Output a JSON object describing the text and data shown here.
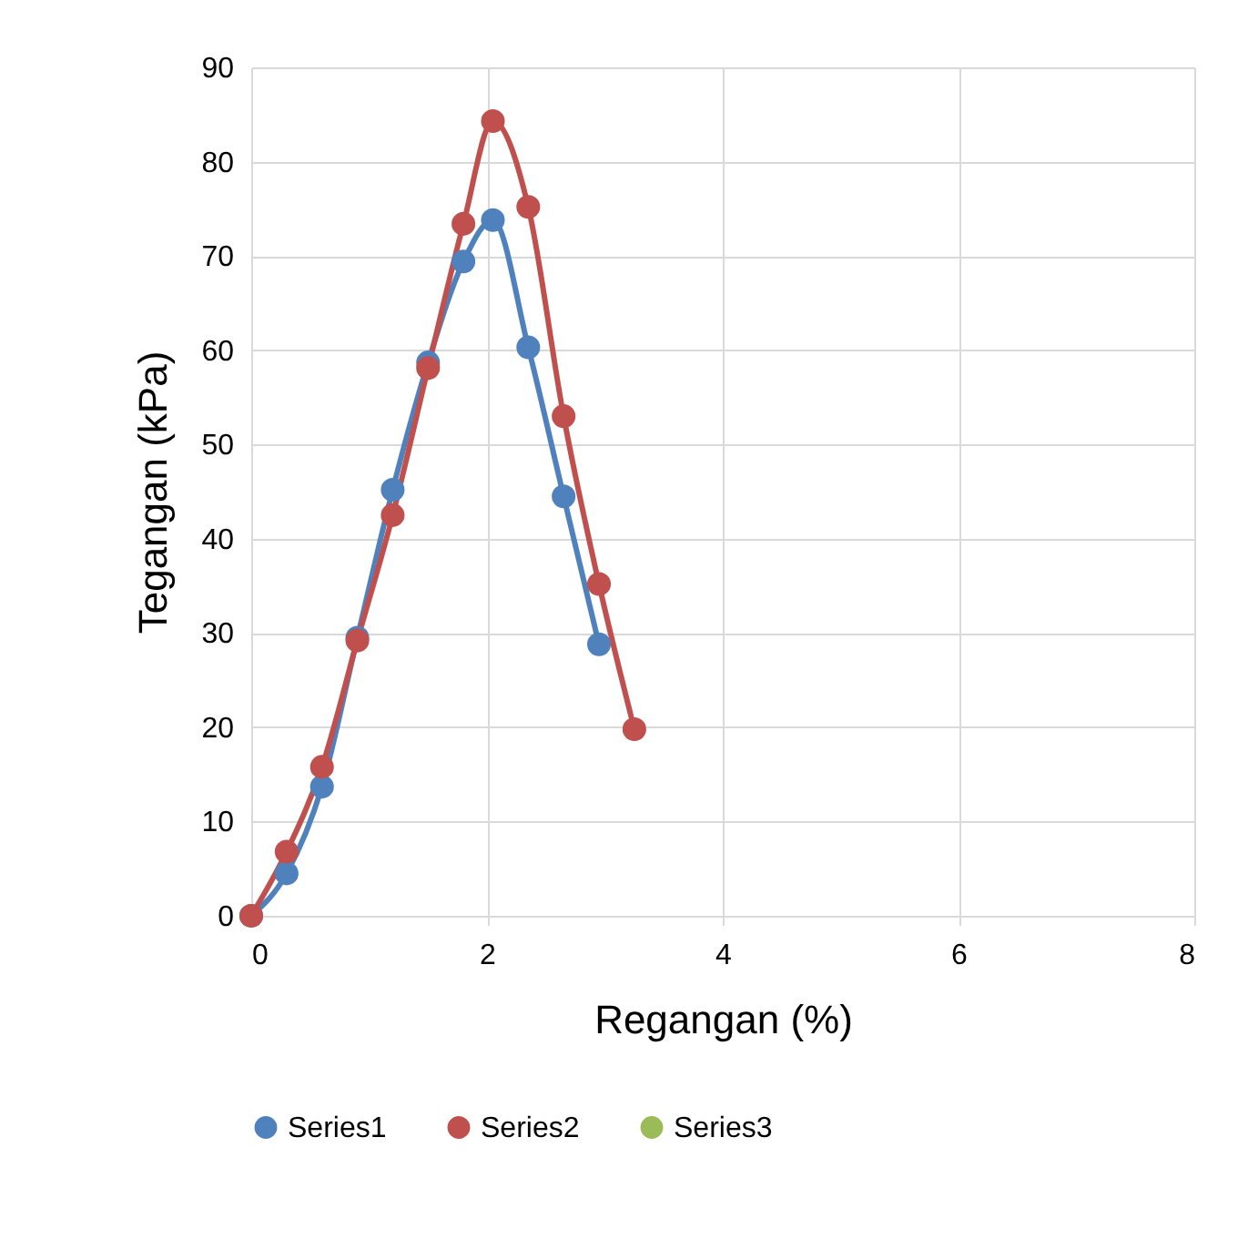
{
  "chart_data": {
    "type": "line",
    "xlabel": "Regangan (%)",
    "ylabel": "Tegangan (kPa)",
    "x": [
      0,
      0.3,
      0.6,
      0.9,
      1.2,
      1.5,
      1.8,
      2.05,
      2.35,
      2.65,
      2.95,
      3.25
    ],
    "series": [
      {
        "name": "Series1",
        "color": "#4f81bd",
        "values": [
          0,
          4.5,
          13.7,
          29.5,
          45.2,
          58.7,
          69.4,
          73.8,
          60.3,
          44.5,
          28.8,
          null
        ]
      },
      {
        "name": "Series2",
        "color": "#c0504d",
        "values": [
          0,
          6.8,
          15.8,
          29.2,
          42.5,
          58.1,
          73.4,
          84.3,
          75.2,
          53,
          35.2,
          19.8
        ]
      },
      {
        "name": "Series3",
        "color": "#9bbb59",
        "values": [
          null,
          null,
          null,
          null,
          null,
          null,
          null,
          null,
          null,
          null,
          null,
          null
        ]
      }
    ],
    "xlim": [
      0,
      8
    ],
    "xticks": [
      0,
      2,
      4,
      6,
      8
    ],
    "ylim": [
      0,
      90
    ],
    "yticks": [
      0,
      10,
      20,
      30,
      40,
      50,
      60,
      70,
      80,
      90
    ],
    "grid": true,
    "legend": "bottom",
    "marker": "circle",
    "line_style": "solid"
  }
}
